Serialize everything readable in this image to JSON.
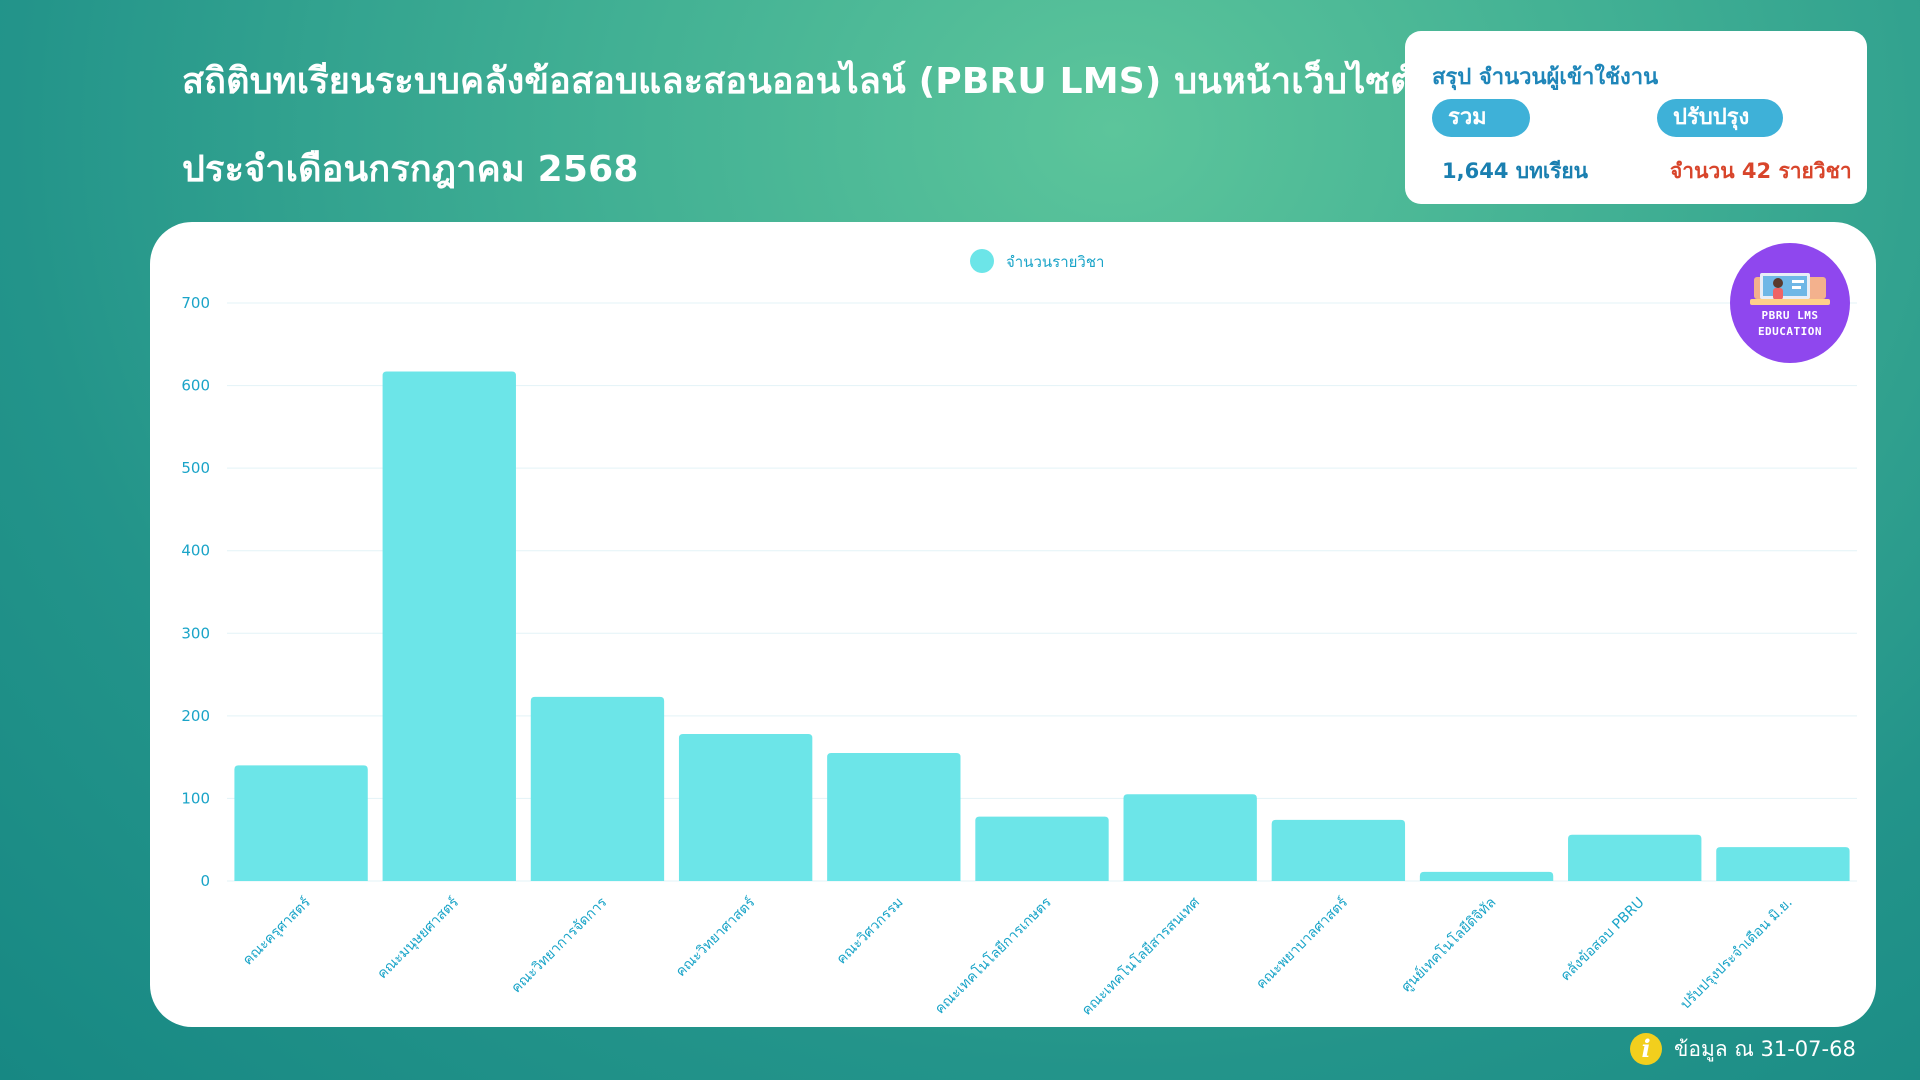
{
  "header": {
    "title_line1": "สถิติบทเรียนระบบคลังข้อสอบและสอนออนไลน์ (PBRU LMS) บนหน้าเว็บไซต์",
    "title_line2": "ประจำเดือนกรกฎาคม 2568"
  },
  "summary": {
    "title": "สรุป จำนวนผู้เข้าใช้งาน",
    "total_label": "รวม",
    "update_label": "ปรับปรุง",
    "total_value": "1,644 บทเรียน",
    "update_value": "จำนวน  42 รายวิชา"
  },
  "logo": {
    "line1": "PBRU LMS",
    "line2": "EDUCATION",
    "icon": "teacher-at-screen-illustration",
    "color": "#8f47ee"
  },
  "footer": {
    "icon": "info-icon",
    "text": "ข้อมูล ณ 31-07-68"
  },
  "colors": {
    "bar": "#6ce5e8",
    "axis_text": "#1aa4c8",
    "grid": "#e3f3f7"
  },
  "chart_data": {
    "type": "bar",
    "legend": [
      "จำนวนรายวิชา"
    ],
    "legend_position": "top-center",
    "grid": true,
    "ylim": [
      0,
      700
    ],
    "yticks": [
      0,
      100,
      200,
      300,
      400,
      500,
      600,
      700
    ],
    "categories": [
      "คณะครุศาสตร์",
      "คณะมนุษยศาสตร์",
      "คณะวิทยาการจัดการ",
      "คณะวิทยาศาสตร์",
      "คณะวิศวกรรม",
      "คณะเทคโนโลยีการเกษตร",
      "คณะเทคโนโลยีสารสนเทศ",
      "คณะพยาบาลศาสตร์",
      "ศูนย์เทคโนโลยีดิจิทัล",
      "คลังข้อสอบ PBRU",
      "ปรับปรุงประจำเดือน มิ.ย."
    ],
    "series": [
      {
        "name": "จำนวนรายวิชา",
        "values": [
          140,
          617,
          223,
          178,
          155,
          78,
          105,
          74,
          11,
          56,
          41
        ]
      }
    ]
  }
}
